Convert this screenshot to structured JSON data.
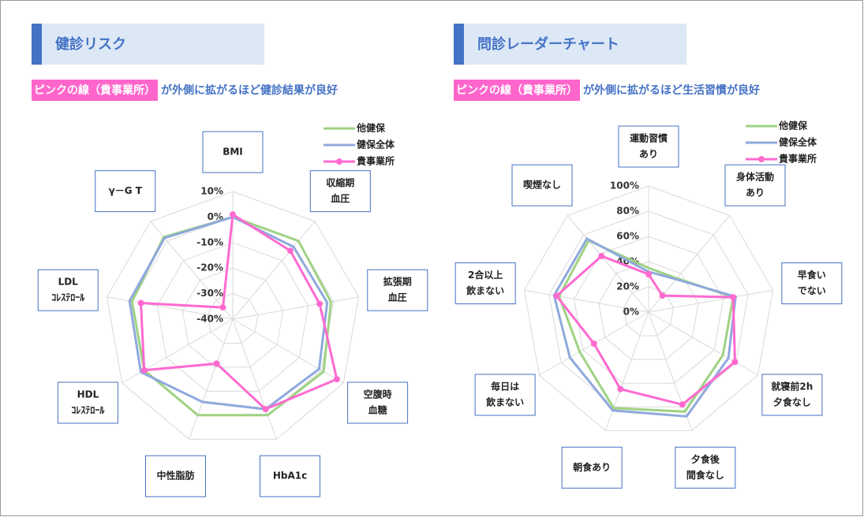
{
  "chart_data": [
    {
      "type": "radar",
      "title": "健診リスク",
      "subtitle": [
        "ピンクの線（貴事業所）",
        "が外側に拡がるほど健診結果が良好"
      ],
      "categories": [
        [
          "BMI"
        ],
        [
          "収縮期",
          "血圧"
        ],
        [
          "拡張期",
          "血圧"
        ],
        [
          "空腹時",
          "血糖"
        ],
        [
          "HbA1c"
        ],
        [
          "中性脂肪"
        ],
        [
          "HDL",
          "ｺﾚｽﾃﾛｰﾙ"
        ],
        [
          "LDL",
          "ｺﾚｽﾃﾛｰﾙ"
        ],
        [
          "γ－G T"
        ]
      ],
      "rlim": [
        -40,
        10
      ],
      "rticks": [
        {
          "value": 10,
          "label": "10%"
        },
        {
          "value": 0,
          "label": "0%"
        },
        {
          "value": -10,
          "label": "-10%"
        },
        {
          "value": -20,
          "label": "-20%"
        },
        {
          "value": -30,
          "label": "-30%"
        },
        {
          "value": -40,
          "label": "-40%"
        }
      ],
      "legend": "upper right",
      "series": [
        {
          "name": "他健保",
          "color": "#9fd283",
          "values": [
            0,
            0,
            -1,
            1,
            0,
            0,
            0,
            0,
            2
          ]
        },
        {
          "name": "健保全体",
          "color": "#8fa9dc",
          "values": [
            0,
            -3,
            -2.5,
            -1,
            -2.5,
            -5.5,
            1.5,
            1,
            1.5
          ]
        },
        {
          "name": "貴事業所",
          "color": "#ff6ad0",
          "marker": "circle",
          "values": [
            1,
            -5,
            -5.5,
            7,
            -2.5,
            -21.5,
            0,
            -3.5,
            -34
          ]
        }
      ]
    },
    {
      "type": "radar",
      "title": "問診レーダーチャート",
      "subtitle": [
        "ピンクの線（貴事業所）",
        "が外側に拡がるほど生活習慣が良好"
      ],
      "categories": [
        [
          "運動習慣",
          "あり"
        ],
        [
          "身体活動",
          "あり"
        ],
        [
          "早食い",
          "でない"
        ],
        [
          "就寝前2h",
          "夕食なし"
        ],
        [
          "夕食後",
          "間食なし"
        ],
        [
          "朝食あり"
        ],
        [
          "毎日は",
          "飲まない"
        ],
        [
          "2合以上",
          "飲まない"
        ],
        [
          "喫煙なし"
        ]
      ],
      "rlim": [
        0,
        100
      ],
      "rticks": [
        {
          "value": 100,
          "label": "100%"
        },
        {
          "value": 80,
          "label": "80%"
        },
        {
          "value": 60,
          "label": "60%"
        },
        {
          "value": 40,
          "label": "40%"
        },
        {
          "value": 20,
          "label": "20%"
        },
        {
          "value": 0,
          "label": "0%"
        }
      ],
      "legend": "upper right",
      "series": [
        {
          "name": "他健保",
          "color": "#9fd283",
          "values": [
            35,
            35,
            68,
            68,
            84,
            81,
            63,
            72,
            74
          ]
        },
        {
          "name": "健保全体",
          "color": "#8fa9dc",
          "values": [
            32,
            34,
            70,
            73,
            88,
            83,
            72,
            76,
            76
          ]
        },
        {
          "name": "貴事業所",
          "color": "#ff6ad0",
          "marker": "circle",
          "values": [
            30,
            17,
            68,
            79,
            78,
            65,
            50,
            74,
            58
          ]
        }
      ]
    }
  ]
}
